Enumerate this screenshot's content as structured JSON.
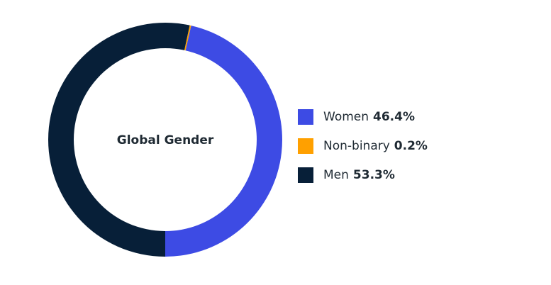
{
  "chart_data": {
    "type": "pie",
    "donut": true,
    "center_label": "Global Gender",
    "slices": [
      {
        "label": "Women",
        "value": 46.4,
        "value_label": "46.4%",
        "color": "#3d4be4"
      },
      {
        "label": "Non-binary",
        "value": 0.2,
        "value_label": "0.2%",
        "color": "#ffa000"
      },
      {
        "label": "Men",
        "value": 53.3,
        "value_label": "53.3%",
        "color": "#071f38"
      }
    ],
    "legend_position": "right"
  }
}
